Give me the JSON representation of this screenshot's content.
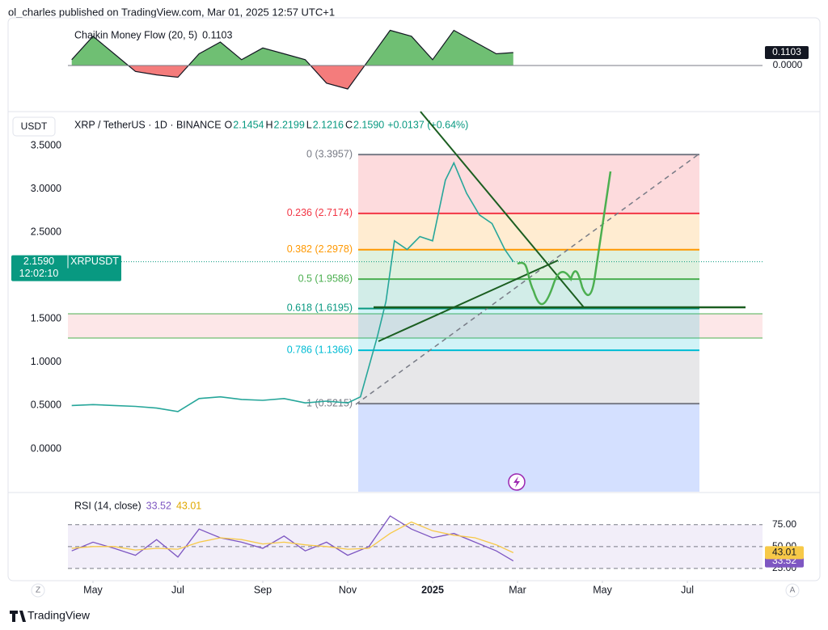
{
  "header": {
    "publisher": "ol_charles published on TradingView.com, Mar 01, 2025 12:57 UTC+1"
  },
  "footer": {
    "brand": "TradingView"
  },
  "chart_data": [
    {
      "type": "area",
      "title": "Chaikin Money Flow (20, 5)",
      "x": [
        4.5,
        5,
        5.5,
        6,
        6.5,
        7,
        7.5,
        8,
        8.5,
        9,
        9.5,
        10,
        10.5,
        11,
        11.5,
        12,
        12.5,
        13,
        13.5,
        14,
        14.5,
        14.9
      ],
      "series": [
        {
          "positive_color": "#6fbf73",
          "negative_color": "#f47c7c",
          "color": "#131722",
          "values": [
            0.05,
            0.25,
            0.1,
            -0.05,
            -0.08,
            -0.1,
            0.1,
            0.2,
            0.05,
            0.15,
            0.1,
            0.05,
            -0.15,
            -0.2,
            0.05,
            0.3,
            0.25,
            0.05,
            0.3,
            0.2,
            0.1,
            0.1103
          ]
        }
      ],
      "xlim": [
        4.41,
        20.77
      ],
      "ylim": [
        -0.386,
        0.407
      ],
      "yticks": [
        {
          "value": 0,
          "label": "0.0000"
        }
      ]
    },
    {
      "type": "line",
      "currency": "USDT",
      "symbol": "XRP / TetherUS · 1D · BINANCE",
      "ohlc": {
        "labels": [
          "O",
          "H",
          "L",
          "C"
        ],
        "values": [
          2.1454,
          2.2199,
          2.1216,
          2.159
        ],
        "value_labels": [
          "2.1454",
          "2.2199",
          "2.1216",
          "2.1590"
        ]
      },
      "change": "+0.0137 (+0.64%)",
      "ticker": "XRPUSDT",
      "countdown": "12:02:10",
      "x": [
        4.5,
        5,
        5.5,
        6,
        6.5,
        7,
        7.5,
        8,
        8.5,
        9,
        9.5,
        10,
        10.5,
        11,
        11.3,
        11.5,
        11.7,
        11.9,
        12.1,
        12.4,
        12.7,
        13,
        13.3,
        13.5,
        13.8,
        14.1,
        14.4,
        14.7,
        14.9
      ],
      "series": [
        {
          "color": "#26a69a",
          "values": [
            0.5,
            0.51,
            0.5,
            0.49,
            0.47,
            0.43,
            0.58,
            0.6,
            0.57,
            0.56,
            0.58,
            0.53,
            0.55,
            0.53,
            0.6,
            0.95,
            1.3,
            1.7,
            2.4,
            2.3,
            2.45,
            2.4,
            3.1,
            3.3,
            2.95,
            2.7,
            2.6,
            2.3,
            2.159
          ]
        }
      ],
      "fib_levels": [
        {
          "label": "0 (3.3957)",
          "value": 3.3957,
          "color": "#787b86"
        },
        {
          "label": "0.236 (2.7174)",
          "value": 2.7174,
          "color": "#f23645"
        },
        {
          "label": "0.382 (2.2978)",
          "value": 2.2978,
          "color": "#ff9800"
        },
        {
          "label": "0.5 (1.9586)",
          "value": 1.9586,
          "color": "#4caf50"
        },
        {
          "label": "0.618 (1.6195)",
          "value": 1.6195,
          "color": "#089981"
        },
        {
          "label": "0.786 (1.1366)",
          "value": 1.1366,
          "color": "#00bcd4"
        },
        {
          "label": "1 (0.5215)",
          "value": 0.5215,
          "color": "#787b86"
        }
      ],
      "xlim": [
        4.41,
        20.77
      ],
      "ylim": [
        -0.495,
        3.873
      ],
      "grid": false,
      "yticks": [
        {
          "value": 3.5,
          "label": "3.5000"
        },
        {
          "value": 3,
          "label": "3.0000"
        },
        {
          "value": 2.5,
          "label": "2.5000"
        },
        {
          "value": 1.5,
          "label": "1.5000"
        },
        {
          "value": 1,
          "label": "1.0000"
        },
        {
          "value": 0.5,
          "label": "0.5000"
        },
        {
          "value": 0,
          "label": "0.0000"
        }
      ]
    },
    {
      "type": "line",
      "title": "RSI (14, close)",
      "x": [
        4.5,
        5,
        5.5,
        6,
        6.5,
        7,
        7.5,
        8,
        8.5,
        9,
        9.5,
        10,
        10.5,
        11,
        11.5,
        12,
        12.5,
        13,
        13.5,
        14,
        14.5,
        14.9
      ],
      "series": [
        {
          "color": "#7e57c2",
          "values": [
            45,
            55,
            48,
            40,
            58,
            38,
            70,
            60,
            55,
            48,
            62,
            45,
            55,
            40,
            50,
            85,
            70,
            60,
            65,
            55,
            45,
            33.52
          ]
        },
        {
          "color": "#f7c948",
          "values": [
            48,
            50,
            50,
            46,
            48,
            47,
            55,
            60,
            58,
            53,
            55,
            52,
            50,
            47,
            48,
            65,
            78,
            68,
            63,
            60,
            52,
            43.01
          ]
        }
      ],
      "xlim": [
        4.41,
        20.77
      ],
      "ylim": [
        11,
        109
      ],
      "yticks": [
        {
          "value": 75,
          "label": "75.00"
        },
        {
          "value": 50,
          "label": "50.00"
        },
        {
          "value": 25,
          "label": "25.00"
        }
      ],
      "xticks": [
        {
          "value": 5,
          "label": "May"
        },
        {
          "value": 7,
          "label": "Jul"
        },
        {
          "value": 9,
          "label": "Sep"
        },
        {
          "value": 11,
          "label": "Nov"
        },
        {
          "value": 13,
          "label": "2025"
        },
        {
          "value": 15,
          "label": "Mar"
        },
        {
          "value": 17,
          "label": "May"
        },
        {
          "value": 19,
          "label": "Jul"
        }
      ]
    }
  ]
}
